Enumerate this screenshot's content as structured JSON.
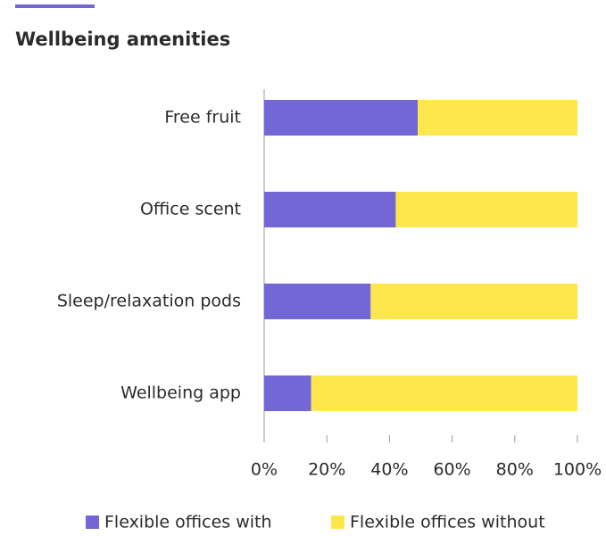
{
  "chart_data": {
    "type": "stacked_barh",
    "title": "Wellbeing amenities",
    "categories": [
      "Free fruit",
      "Office scent",
      "Sleep/relaxation pods",
      "Wellbeing app"
    ],
    "series": [
      {
        "name": "Flexible offices with",
        "color": "#7367d6",
        "values": [
          49,
          42,
          34,
          15
        ]
      },
      {
        "name": "Flexible offices without",
        "color": "#fde74c",
        "values": [
          51,
          58,
          66,
          85
        ]
      }
    ],
    "xlim": [
      0,
      100
    ],
    "xticks": [
      {
        "value": 0,
        "label": "0%"
      },
      {
        "value": 20,
        "label": "20%"
      },
      {
        "value": 40,
        "label": "40%"
      },
      {
        "value": 60,
        "label": "60%"
      },
      {
        "value": 80,
        "label": "80%"
      },
      {
        "value": 100,
        "label": "100%"
      }
    ],
    "legend": "bottom"
  }
}
